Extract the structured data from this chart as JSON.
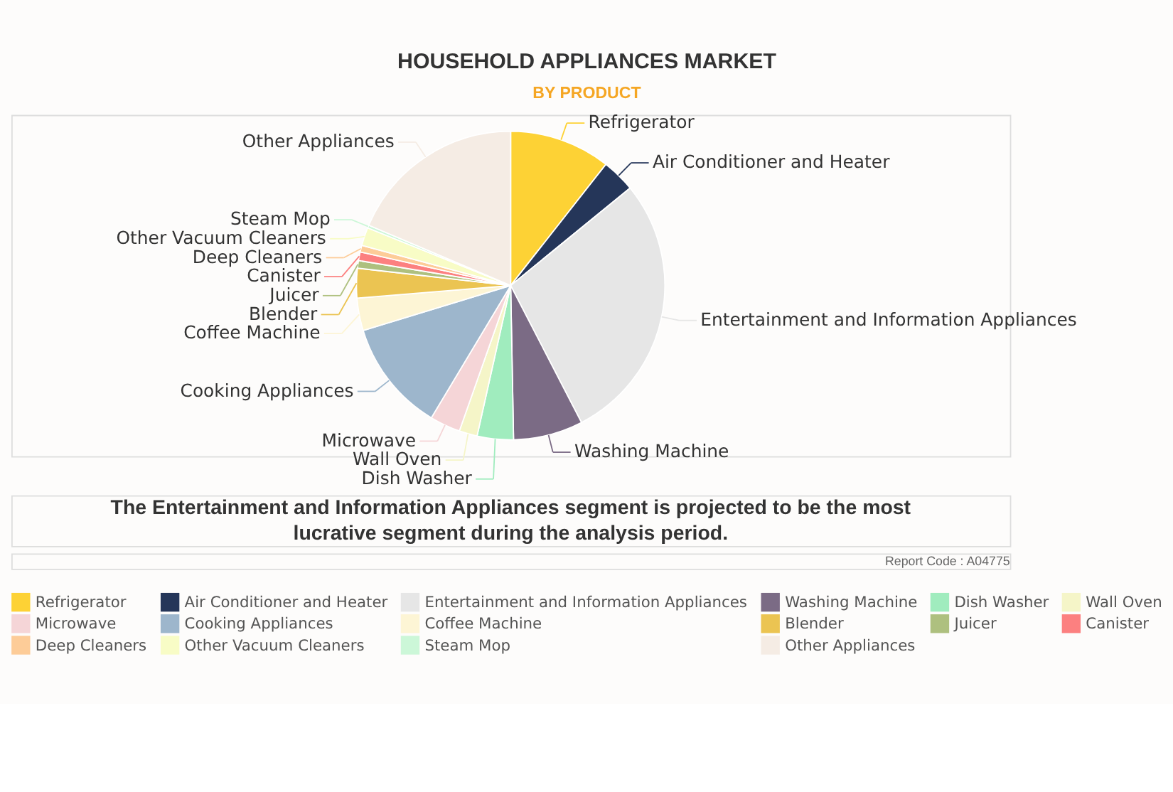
{
  "chart_data": {
    "type": "pie",
    "title": "HOUSEHOLD APPLIANCES MARKET",
    "subtitle": "BY PRODUCT",
    "categories": [
      "Refrigerator",
      "Air Conditioner and Heater",
      "Entertainment and Information Appliances",
      "Washing Machine",
      "Dish Washer",
      "Wall Oven",
      "Microwave",
      "Cooking Appliances",
      "Coffee Machine",
      "Blender",
      "Juicer",
      "Canister",
      "Deep Cleaners",
      "Other Vacuum Cleaners",
      "Steam Mop",
      "Other Appliances"
    ],
    "values": [
      10.6,
      3.5,
      28.3,
      7.3,
      3.8,
      1.9,
      3.2,
      11.7,
      3.4,
      3.1,
      0.8,
      0.9,
      0.7,
      1.9,
      0.3,
      18.6
    ],
    "colors": [
      "#fdd235",
      "#253659",
      "#e6e6e6",
      "#7b6b85",
      "#a0ecbe",
      "#f5f5c8",
      "#f5d5d7",
      "#9db6cc",
      "#fdf5d5",
      "#ebc452",
      "#aec07f",
      "#fc8080",
      "#fdcc98",
      "#f8fcc6",
      "#ccf7d8",
      "#f5ece4"
    ],
    "legend": "bottom",
    "annotations": [
      "The Entertainment and Information Appliances segment is projected to be the most lucrative segment during the analysis period.",
      "Report Code : A04775"
    ]
  }
}
